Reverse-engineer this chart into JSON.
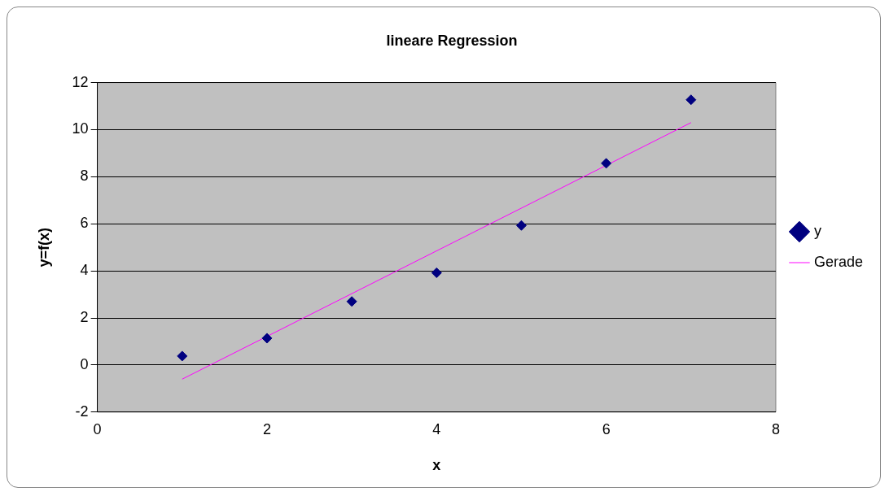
{
  "chart_data": {
    "type": "scatter",
    "title": "lineare Regression",
    "xlabel": "x",
    "ylabel": "y=f(x)",
    "xlim": [
      0,
      8
    ],
    "xticks": [
      0,
      2,
      4,
      6,
      8
    ],
    "ylim": [
      -2,
      12
    ],
    "yticks": [
      -2,
      0,
      2,
      4,
      6,
      8,
      10,
      12
    ],
    "grid": "y",
    "legend": "right",
    "marker": "diamond",
    "series": [
      {
        "name": "y",
        "type": "scatter",
        "color": "#000080",
        "x": [
          1,
          2,
          3,
          4,
          5,
          6,
          7
        ],
        "values": [
          0.38,
          1.14,
          2.7,
          3.92,
          5.93,
          8.57,
          11.27
        ]
      },
      {
        "name": "Gerade",
        "type": "line",
        "marker": "none",
        "color": "#ff00ff",
        "x": [
          1,
          7
        ],
        "values": [
          -0.6,
          10.3
        ]
      }
    ]
  }
}
